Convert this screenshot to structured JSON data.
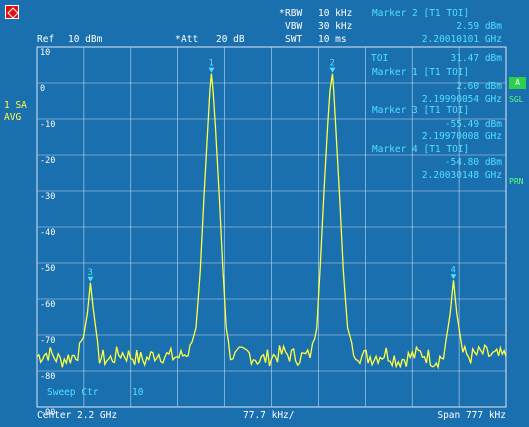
{
  "header": {
    "rbw_star": "*",
    "rbw_label": "RBW",
    "rbw_value": "10 kHz",
    "vbw_label": "VBW",
    "vbw_value": "30 kHz",
    "swt_label": "SWT",
    "swt_value": "10 ms",
    "ref_label": "Ref",
    "ref_value": "10 dBm",
    "att_star": "*",
    "att_label": "Att",
    "att_value": "20 dB"
  },
  "marker2": {
    "title": "Marker 2 [T1 TOI]",
    "level": "2.59 dBm",
    "freq": "2.20010101 GHz"
  },
  "marker_table": {
    "toi_label": "TOI",
    "toi_value": "31.47 dBm",
    "m1_title": "Marker 1 [T1 TOI]",
    "m1_level": "2.60 dBm",
    "m1_freq": "2.19990054 GHz",
    "m3_title": "Marker 3 [T1 TOI]",
    "m3_level": "-55.49 dBm",
    "m3_freq": "2.19970008 GHz",
    "m4_title": "Marker 4 [T1 TOI]",
    "m4_level": "-54.80 dBm",
    "m4_freq": "2.20030148 GHz"
  },
  "left_panel": {
    "trace_mode": "1 SA",
    "detector": "AVG"
  },
  "right_panel": {
    "badge_a": "A",
    "sgl": "SGL",
    "prn": "PRN"
  },
  "y_ticks": [
    "10",
    "0",
    "-10",
    "-20",
    "-30",
    "-40",
    "-50",
    "-60",
    "-70",
    "-80",
    "-90"
  ],
  "sweep_label": "Sweep Ctr",
  "sweep_value": "10",
  "footer": {
    "center": "Center 2.2 GHz",
    "div": "77.7 kHz/",
    "span": "Span 777 kHz"
  },
  "markers": [
    {
      "label": "1",
      "x_khz": -99.46,
      "level": 2.6
    },
    {
      "label": "2",
      "x_khz": 101.01,
      "level": 2.59
    },
    {
      "label": "3",
      "x_khz": -299.92,
      "level": -55.49
    },
    {
      "label": "4",
      "x_khz": 301.48,
      "level": -54.8
    }
  ],
  "chart_data": {
    "type": "line",
    "x_unit": "kHz offset from 2.2 GHz",
    "xlim": [
      -388.5,
      388.5
    ],
    "ylim": [
      -90,
      10
    ],
    "noise_floor": -76,
    "x": [
      -388.5,
      -370,
      -350,
      -330,
      -315,
      -305,
      -300,
      -295,
      -285,
      -270,
      -250,
      -230,
      -210,
      -190,
      -170,
      -150,
      -135,
      -125,
      -118,
      -112,
      -106,
      -102,
      -99.5,
      -97,
      -93,
      -87,
      -81,
      -75,
      -68,
      -60,
      -40,
      -20,
      0,
      20,
      40,
      60,
      68,
      75,
      81,
      87,
      93,
      97,
      101,
      103,
      107,
      113,
      119,
      126,
      136,
      150,
      170,
      190,
      210,
      230,
      250,
      270,
      285,
      296,
      301.5,
      307,
      317,
      330,
      350,
      370,
      388.5
    ],
    "y": [
      -76,
      -75,
      -77,
      -76,
      -74,
      -64,
      -55.5,
      -63,
      -76,
      -77,
      -75,
      -76,
      -77,
      -75,
      -76,
      -76,
      -74,
      -68,
      -52,
      -32,
      -14,
      -2,
      2.6,
      -2,
      -12,
      -30,
      -50,
      -68,
      -75,
      -76,
      -75,
      -77,
      -76,
      -75,
      -76,
      -76,
      -74,
      -68,
      -50,
      -30,
      -12,
      -2,
      2.59,
      -2,
      -14,
      -32,
      -52,
      -68,
      -74,
      -76,
      -76,
      -75,
      -77,
      -76,
      -75,
      -77,
      -76,
      -64,
      -54.8,
      -64,
      -75,
      -76,
      -75,
      -76,
      -76
    ],
    "grid": true,
    "colors": {
      "trace": "#ffff40",
      "grid": "#c8d8ec",
      "marker": "#4fe0ff",
      "background": "#1a6fae"
    }
  }
}
